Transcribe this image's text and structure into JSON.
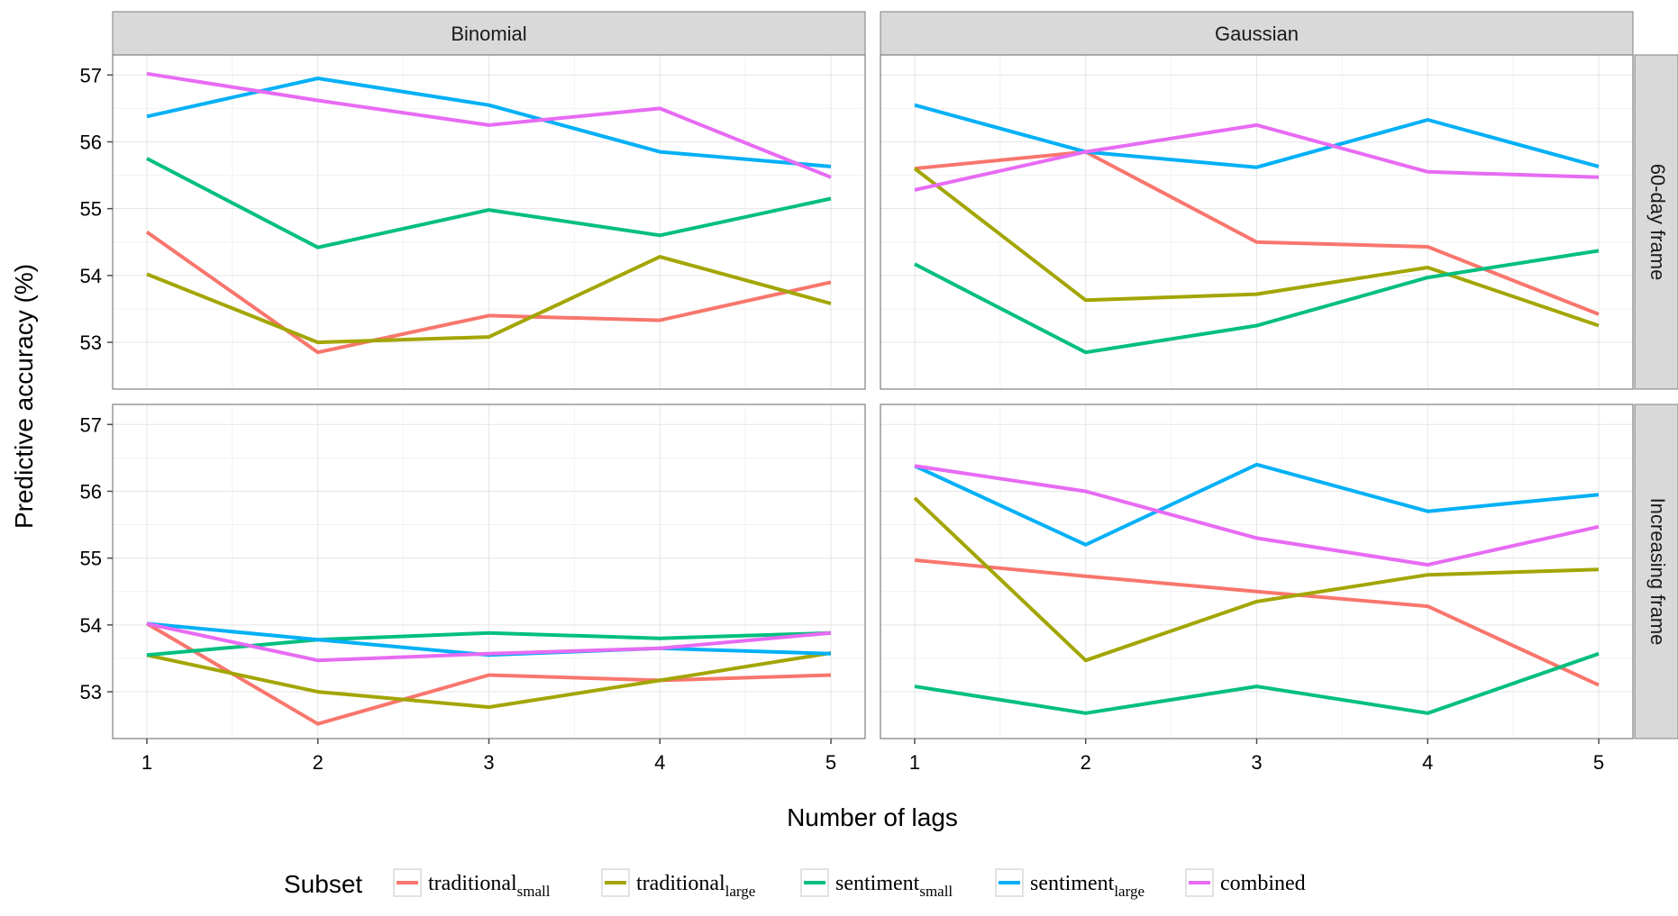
{
  "chart_data": {
    "type": "line",
    "facet_columns": [
      "Binomial",
      "Gaussian"
    ],
    "facet_rows": [
      "60-day frame",
      "Increasing frame"
    ],
    "xlabel": "Number of lags",
    "ylabel": "Predictive accuracy (%)",
    "x": [
      1,
      2,
      3,
      4,
      5
    ],
    "x_ticks": [
      "1",
      "2",
      "3",
      "4",
      "5"
    ],
    "y_ticks": [
      "53",
      "54",
      "55",
      "56",
      "57"
    ],
    "ylim": [
      52.3,
      57.3
    ],
    "grid": true,
    "legend": {
      "title": "Subset",
      "position": "bottom",
      "entries": [
        {
          "key": "traditional_small",
          "base": "traditional",
          "sub": "small",
          "color": "#F8766D"
        },
        {
          "key": "traditional_large",
          "base": "traditional",
          "sub": "large",
          "color": "#A3A500"
        },
        {
          "key": "sentiment_small",
          "base": "sentiment",
          "sub": "small",
          "color": "#00BF7D"
        },
        {
          "key": "sentiment_large",
          "base": "sentiment",
          "sub": "large",
          "color": "#00B0F6"
        },
        {
          "key": "combined",
          "base": "combined",
          "sub": "",
          "color": "#E76BF3"
        }
      ]
    },
    "panels": [
      {
        "column": "Binomial",
        "row": "60-day frame",
        "series": [
          {
            "key": "traditional_small",
            "values": [
              54.65,
              52.85,
              53.4,
              53.33,
              53.9
            ]
          },
          {
            "key": "traditional_large",
            "values": [
              54.02,
              53.0,
              53.08,
              54.28,
              53.58
            ]
          },
          {
            "key": "sentiment_small",
            "values": [
              55.75,
              54.42,
              54.98,
              54.6,
              55.15
            ]
          },
          {
            "key": "sentiment_large",
            "values": [
              56.38,
              56.95,
              56.55,
              55.85,
              55.63
            ]
          },
          {
            "key": "combined",
            "values": [
              57.02,
              56.62,
              56.25,
              56.5,
              55.47
            ]
          }
        ]
      },
      {
        "column": "Gaussian",
        "row": "60-day frame",
        "series": [
          {
            "key": "traditional_small",
            "values": [
              55.6,
              55.85,
              54.5,
              54.43,
              53.42
            ]
          },
          {
            "key": "traditional_large",
            "values": [
              55.6,
              53.63,
              53.72,
              54.12,
              53.25
            ]
          },
          {
            "key": "sentiment_small",
            "values": [
              54.17,
              52.85,
              53.25,
              53.97,
              54.37
            ]
          },
          {
            "key": "sentiment_large",
            "values": [
              56.55,
              55.85,
              55.62,
              56.33,
              55.63
            ]
          },
          {
            "key": "combined",
            "values": [
              55.28,
              55.85,
              56.25,
              55.55,
              55.47
            ]
          }
        ]
      },
      {
        "column": "Binomial",
        "row": "Increasing frame",
        "series": [
          {
            "key": "traditional_small",
            "values": [
              54.02,
              52.52,
              53.25,
              53.17,
              53.25
            ]
          },
          {
            "key": "traditional_large",
            "values": [
              53.55,
              53.0,
              52.77,
              53.17,
              53.58
            ]
          },
          {
            "key": "sentiment_small",
            "values": [
              53.55,
              53.78,
              53.88,
              53.8,
              53.88
            ]
          },
          {
            "key": "sentiment_large",
            "values": [
              54.02,
              53.78,
              53.55,
              53.65,
              53.57
            ]
          },
          {
            "key": "combined",
            "values": [
              54.02,
              53.47,
              53.57,
              53.65,
              53.88
            ]
          }
        ]
      },
      {
        "column": "Gaussian",
        "row": "Increasing frame",
        "series": [
          {
            "key": "traditional_small",
            "values": [
              54.97,
              54.73,
              54.5,
              54.28,
              53.1
            ]
          },
          {
            "key": "traditional_large",
            "values": [
              55.9,
              53.47,
              54.35,
              54.75,
              54.83
            ]
          },
          {
            "key": "sentiment_small",
            "values": [
              53.08,
              52.68,
              53.08,
              52.68,
              53.57
            ]
          },
          {
            "key": "sentiment_large",
            "values": [
              56.38,
              55.2,
              56.4,
              55.7,
              55.95
            ]
          },
          {
            "key": "combined",
            "values": [
              56.38,
              56.0,
              55.3,
              54.9,
              55.47
            ]
          }
        ]
      }
    ]
  }
}
